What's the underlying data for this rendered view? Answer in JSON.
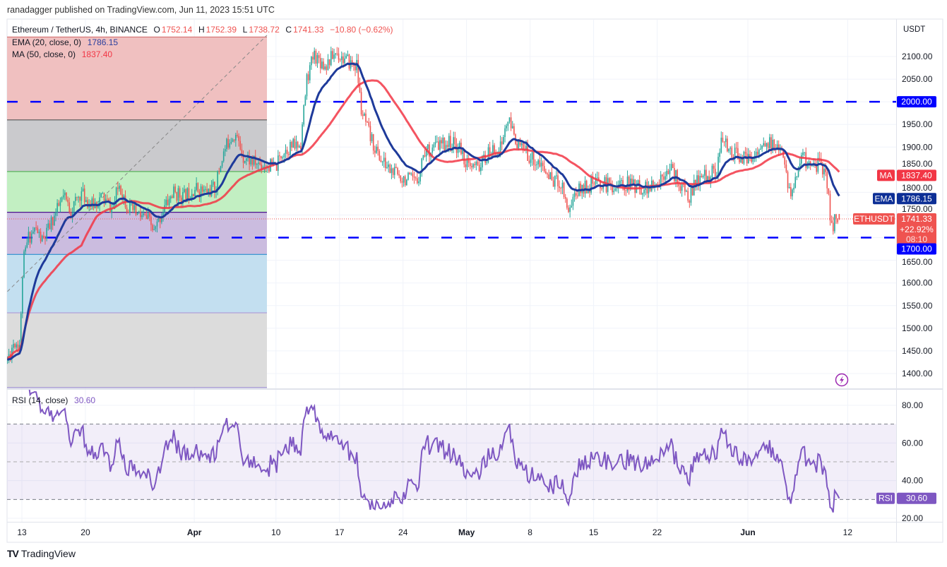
{
  "header": {
    "published": "ranadagger published on TradingView.com, Jun 11, 2023 15:51 UTC"
  },
  "legend": {
    "symbol": "Ethereum / TetherUS, 4h, BINANCE",
    "o_label": "O",
    "o": "1752.14",
    "h_label": "H",
    "h": "1752.39",
    "l_label": "L",
    "l": "1738.72",
    "c_label": "C",
    "c": "1741.33",
    "change": "−10.80 (−0.62%)",
    "ema_label": "EMA (20, close, 0)",
    "ema_value": "1786.15",
    "ma_label": "MA (50, close, 0)",
    "ma_value": "1837.40",
    "rsi_label": "RSI (14, close)",
    "rsi_value": "30.60"
  },
  "price_axis": {
    "currency": "USDT",
    "ticks": [
      "2100.00",
      "2050.00",
      "1950.00",
      "1900.00",
      "1850.00",
      "1800.00",
      "1750.00",
      "1650.00",
      "1600.00",
      "1550.00",
      "1500.00",
      "1450.00",
      "1400.00"
    ]
  },
  "rsi_axis": {
    "ticks": [
      "80.00",
      "60.00",
      "40.00",
      "20.00"
    ]
  },
  "tags": {
    "ma_label": "MA",
    "ma_value": "1837.40",
    "ema_label": "EMA",
    "ema_value": "1786.15",
    "symbol_label": "ETHUSDT",
    "last_price": "1741.33",
    "change_pct": "+22.92%",
    "countdown": "08:10",
    "support_value": "1700.00",
    "resistance_value": "2000.00",
    "rsi_label": "RSI",
    "rsi_value": "30.60"
  },
  "time_axis": {
    "labels": [
      {
        "text": "13",
        "day": 2
      },
      {
        "text": "20",
        "day": 9
      },
      {
        "text": "Apr",
        "day": 21
      },
      {
        "text": "10",
        "day": 30
      },
      {
        "text": "17",
        "day": 37
      },
      {
        "text": "24",
        "day": 44
      },
      {
        "text": "May",
        "day": 51
      },
      {
        "text": "8",
        "day": 58
      },
      {
        "text": "15",
        "day": 65
      },
      {
        "text": "22",
        "day": 72
      },
      {
        "text": "Jun",
        "day": 82
      },
      {
        "text": "12",
        "day": 93
      }
    ]
  },
  "footer": {
    "logo_text": "TradingView"
  },
  "colors": {
    "up": "#26a69a",
    "down": "#ef5350",
    "ema": "#1e3a9a",
    "ma": "#f23645",
    "rsi": "#7e57c2",
    "level_line": "#0000ff",
    "support_tag": "#0000ff",
    "ema_tag": "#0d2f96"
  },
  "chart_data": {
    "type": "candlestick",
    "title": "Ethereum / TetherUS, 4h, BINANCE",
    "time_unit": "days since Mar 11, 2023 00:00 UTC",
    "candle_interval_days": 0.1666667,
    "ylim": [
      1369,
      2180
    ],
    "close_anchors": [
      [
        0.4,
        1430
      ],
      [
        1.1,
        1470
      ],
      [
        1.8,
        1465
      ],
      [
        2.1,
        1640
      ],
      [
        2.7,
        1700
      ],
      [
        3.5,
        1720
      ],
      [
        4.3,
        1690
      ],
      [
        5.4,
        1740
      ],
      [
        6.6,
        1790
      ],
      [
        7.4,
        1760
      ],
      [
        8.5,
        1800
      ],
      [
        9.7,
        1770
      ],
      [
        10.9,
        1790
      ],
      [
        12.0,
        1760
      ],
      [
        12.7,
        1820
      ],
      [
        13.6,
        1770
      ],
      [
        14.8,
        1750
      ],
      [
        15.9,
        1740
      ],
      [
        16.6,
        1710
      ],
      [
        17.5,
        1760
      ],
      [
        18.7,
        1800
      ],
      [
        19.8,
        1790
      ],
      [
        21.0,
        1810
      ],
      [
        22.2,
        1800
      ],
      [
        23.3,
        1810
      ],
      [
        24.1,
        1880
      ],
      [
        24.9,
        1920
      ],
      [
        25.5,
        1930
      ],
      [
        26.4,
        1880
      ],
      [
        27.6,
        1865
      ],
      [
        29.0,
        1860
      ],
      [
        30.0,
        1855
      ],
      [
        30.7,
        1890
      ],
      [
        31.5,
        1900
      ],
      [
        32.7,
        1905
      ],
      [
        33.4,
        2050
      ],
      [
        34.2,
        2105
      ],
      [
        35.4,
        2080
      ],
      [
        36.6,
        2110
      ],
      [
        37.7,
        2090
      ],
      [
        38.9,
        2080
      ],
      [
        39.4,
        1980
      ],
      [
        40.4,
        1920
      ],
      [
        41.6,
        1870
      ],
      [
        42.8,
        1845
      ],
      [
        44.3,
        1830
      ],
      [
        45.5,
        1820
      ],
      [
        46.3,
        1890
      ],
      [
        47.4,
        1900
      ],
      [
        49.0,
        1910
      ],
      [
        50.2,
        1900
      ],
      [
        51.3,
        1850
      ],
      [
        52.5,
        1860
      ],
      [
        53.7,
        1890
      ],
      [
        54.8,
        1900
      ],
      [
        55.5,
        1960
      ],
      [
        56.0,
        1940
      ],
      [
        56.8,
        1900
      ],
      [
        58.0,
        1880
      ],
      [
        59.1,
        1860
      ],
      [
        60.3,
        1830
      ],
      [
        61.5,
        1820
      ],
      [
        62.2,
        1760
      ],
      [
        63.0,
        1800
      ],
      [
        64.2,
        1815
      ],
      [
        65.7,
        1820
      ],
      [
        67.3,
        1815
      ],
      [
        68.8,
        1820
      ],
      [
        70.4,
        1810
      ],
      [
        71.9,
        1810
      ],
      [
        73.1,
        1860
      ],
      [
        73.9,
        1840
      ],
      [
        74.7,
        1810
      ],
      [
        75.5,
        1790
      ],
      [
        76.6,
        1830
      ],
      [
        77.8,
        1840
      ],
      [
        78.6,
        1850
      ],
      [
        79.1,
        1910
      ],
      [
        80.1,
        1895
      ],
      [
        80.9,
        1880
      ],
      [
        82.1,
        1870
      ],
      [
        83.2,
        1895
      ],
      [
        84.4,
        1905
      ],
      [
        85.2,
        1900
      ],
      [
        85.9,
        1870
      ],
      [
        86.6,
        1800
      ],
      [
        87.1,
        1810
      ],
      [
        87.7,
        1880
      ],
      [
        88.7,
        1865
      ],
      [
        89.9,
        1860
      ],
      [
        90.6,
        1850
      ],
      [
        91.1,
        1740
      ],
      [
        91.4,
        1725
      ],
      [
        91.8,
        1750
      ],
      [
        92.2,
        1741.33
      ]
    ],
    "last_candle": {
      "open": 1752.14,
      "high": 1752.39,
      "low": 1738.72,
      "close": 1741.33
    },
    "indicators": {
      "ema": {
        "period": 20,
        "last": 1786.15
      },
      "ma": {
        "period": 50,
        "last": 1837.4
      },
      "rsi": {
        "period": 14,
        "last": 30.6,
        "bands": [
          70,
          50,
          30
        ],
        "ylim": [
          17,
          88
        ]
      }
    },
    "horizontal_levels": [
      2000,
      1700
    ],
    "fib_levels": [
      2143,
      1960,
      1846,
      1756,
      1663,
      1534,
      1369
    ],
    "trend_line": {
      "from": [
        0.4,
        1581
      ],
      "to": [
        29.0,
        2147
      ]
    },
    "price_ticks": [
      2100,
      2050,
      2000,
      1950,
      1900,
      1850,
      1800,
      1750,
      1700,
      1650,
      1600,
      1550,
      1500,
      1450,
      1400
    ]
  }
}
